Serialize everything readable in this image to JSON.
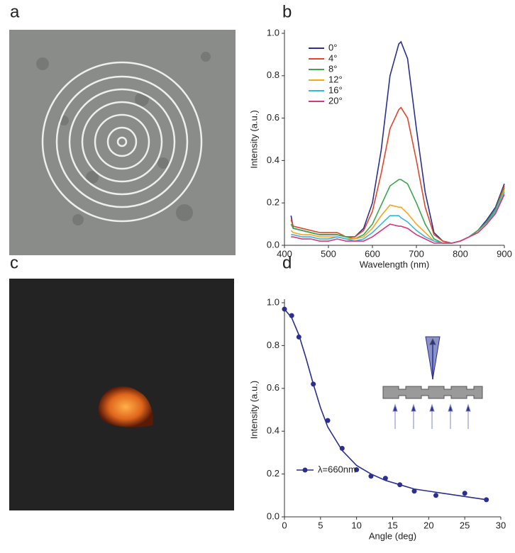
{
  "panels": [
    "a",
    "b",
    "c",
    "d"
  ],
  "chart_data": [
    {
      "type": "line",
      "xlabel": "Wavelength (nm)",
      "ylabel": "Intensity (a.u.)",
      "x": [
        415,
        420,
        440,
        460,
        480,
        500,
        520,
        540,
        560,
        580,
        600,
        620,
        640,
        660,
        665,
        680,
        700,
        720,
        740,
        760,
        780,
        800,
        820,
        840,
        860,
        880,
        900
      ],
      "series": [
        {
          "name": "0°",
          "color": "#2b2f8f",
          "values": [
            0.14,
            0.08,
            0.07,
            0.06,
            0.05,
            0.05,
            0.05,
            0.04,
            0.04,
            0.08,
            0.2,
            0.45,
            0.8,
            0.95,
            0.96,
            0.88,
            0.55,
            0.25,
            0.06,
            0.02,
            0.01,
            0.02,
            0.04,
            0.07,
            0.12,
            0.18,
            0.29
          ]
        },
        {
          "name": "4°",
          "color": "#e0472b",
          "values": [
            0.12,
            0.09,
            0.08,
            0.07,
            0.06,
            0.06,
            0.06,
            0.04,
            0.04,
            0.07,
            0.16,
            0.34,
            0.55,
            0.64,
            0.65,
            0.6,
            0.4,
            0.18,
            0.05,
            0.02,
            0.01,
            0.02,
            0.04,
            0.07,
            0.11,
            0.17,
            0.28
          ]
        },
        {
          "name": "8°",
          "color": "#3aa84a",
          "values": [
            0.1,
            0.08,
            0.07,
            0.06,
            0.05,
            0.05,
            0.05,
            0.04,
            0.03,
            0.05,
            0.1,
            0.19,
            0.28,
            0.31,
            0.31,
            0.29,
            0.2,
            0.1,
            0.03,
            0.01,
            0.01,
            0.02,
            0.04,
            0.07,
            0.11,
            0.17,
            0.27
          ]
        },
        {
          "name": "12°",
          "color": "#f5a623",
          "values": [
            0.07,
            0.06,
            0.05,
            0.05,
            0.04,
            0.04,
            0.04,
            0.03,
            0.03,
            0.04,
            0.08,
            0.14,
            0.19,
            0.18,
            0.18,
            0.15,
            0.1,
            0.06,
            0.02,
            0.01,
            0.01,
            0.02,
            0.04,
            0.06,
            0.1,
            0.16,
            0.26
          ]
        },
        {
          "name": "16°",
          "color": "#3ab4e6",
          "values": [
            0.05,
            0.05,
            0.04,
            0.04,
            0.03,
            0.03,
            0.04,
            0.03,
            0.02,
            0.03,
            0.06,
            0.1,
            0.14,
            0.14,
            0.13,
            0.11,
            0.07,
            0.04,
            0.02,
            0.01,
            0.01,
            0.02,
            0.04,
            0.06,
            0.1,
            0.16,
            0.25
          ]
        },
        {
          "name": "20°",
          "color": "#d6397a",
          "values": [
            0.04,
            0.04,
            0.03,
            0.03,
            0.02,
            0.02,
            0.03,
            0.02,
            0.02,
            0.02,
            0.04,
            0.07,
            0.1,
            0.09,
            0.09,
            0.08,
            0.05,
            0.03,
            0.01,
            0.01,
            0.01,
            0.02,
            0.04,
            0.06,
            0.1,
            0.15,
            0.24
          ]
        }
      ],
      "xlim": [
        400,
        900
      ],
      "ylim": [
        0,
        1.0
      ],
      "xticks": [
        400,
        500,
        600,
        700,
        800,
        900
      ],
      "yticks": [
        {
          "value": 0,
          "label": "0.0"
        },
        0.2,
        0.4,
        0.6,
        0.8,
        {
          "value": 1,
          "label": "1.0"
        }
      ]
    },
    {
      "type": "scatter",
      "xlabel": "Angle (deg)",
      "ylabel": "Intensity (a.u.)",
      "series": [
        {
          "name": "λ=660nm",
          "color": "#2b2f8f",
          "x": [
            0,
            1,
            2,
            4,
            6,
            8,
            10,
            12,
            14,
            16,
            18,
            21,
            25,
            28
          ],
          "values": [
            0.97,
            0.94,
            0.84,
            0.62,
            0.45,
            0.32,
            0.22,
            0.19,
            0.18,
            0.15,
            0.12,
            0.1,
            0.11,
            0.08
          ]
        }
      ],
      "fit": {
        "color": "#2b2f8f",
        "x": [
          0,
          1,
          2,
          3,
          4,
          5,
          6,
          8,
          10,
          12,
          14,
          16,
          18,
          20,
          22,
          24,
          26,
          28
        ],
        "values": [
          0.97,
          0.93,
          0.85,
          0.74,
          0.62,
          0.51,
          0.42,
          0.31,
          0.24,
          0.2,
          0.17,
          0.15,
          0.13,
          0.12,
          0.11,
          0.1,
          0.09,
          0.08
        ]
      },
      "xlim": [
        0,
        30
      ],
      "ylim": [
        0,
        1.0
      ],
      "xticks": [
        0,
        5,
        10,
        15,
        20,
        25,
        30
      ],
      "yticks": [
        {
          "value": 0,
          "label": "0.0"
        },
        0.2,
        0.4,
        0.6,
        0.8,
        {
          "value": 1,
          "label": "1.0"
        }
      ]
    }
  ]
}
